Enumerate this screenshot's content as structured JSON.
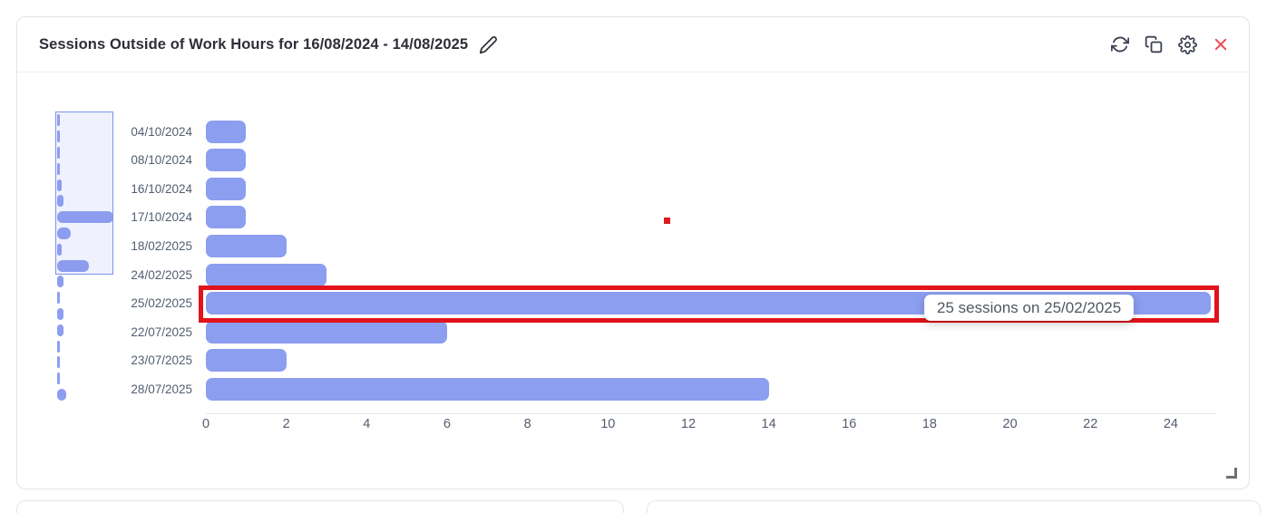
{
  "widget": {
    "title": "Sessions Outside of Work Hours for 16/08/2024 - 14/08/2025",
    "edit_icon": "pencil",
    "toolbar_icons": [
      "refresh",
      "copy",
      "settings",
      "close"
    ]
  },
  "chart_data": {
    "type": "bar",
    "orientation": "horizontal",
    "title": "Sessions Outside of Work Hours for 16/08/2024 - 14/08/2025",
    "categories": [
      "04/10/2024",
      "08/10/2024",
      "16/10/2024",
      "17/10/2024",
      "18/02/2025",
      "24/02/2025",
      "25/02/2025",
      "22/07/2025",
      "23/07/2025",
      "28/07/2025"
    ],
    "values": [
      1,
      1,
      1,
      1,
      2,
      3,
      25,
      6,
      2,
      14
    ],
    "x_ticks": [
      0,
      2,
      4,
      6,
      8,
      10,
      12,
      14,
      16,
      18,
      20,
      22,
      24
    ],
    "xlim": [
      0,
      25.5
    ],
    "grid": false,
    "legend": "none",
    "bar_color": "#8C9EF0",
    "highlighted_category": "25/02/2025",
    "highlighted_value": 25,
    "tooltip_text": "25 sessions on 25/02/2025"
  },
  "minimap": {
    "shadow_values": [
      1,
      1,
      1,
      1,
      2,
      3,
      25,
      6,
      2,
      14,
      3,
      1,
      3,
      3,
      1,
      1,
      1,
      4
    ],
    "selection_rows": [
      0,
      9
    ],
    "max_value": 25
  },
  "colors": {
    "bar": "#8C9EF0",
    "highlight_border": "#E1131C",
    "icon": "#3D4354",
    "close_icon": "#EF4B57",
    "title_text": "#2E2E38",
    "axis_text": "#525E70",
    "card_border": "#E5E5E8",
    "cursor_marker": "#DD1A20",
    "minimap_border": "#7E94E8"
  }
}
